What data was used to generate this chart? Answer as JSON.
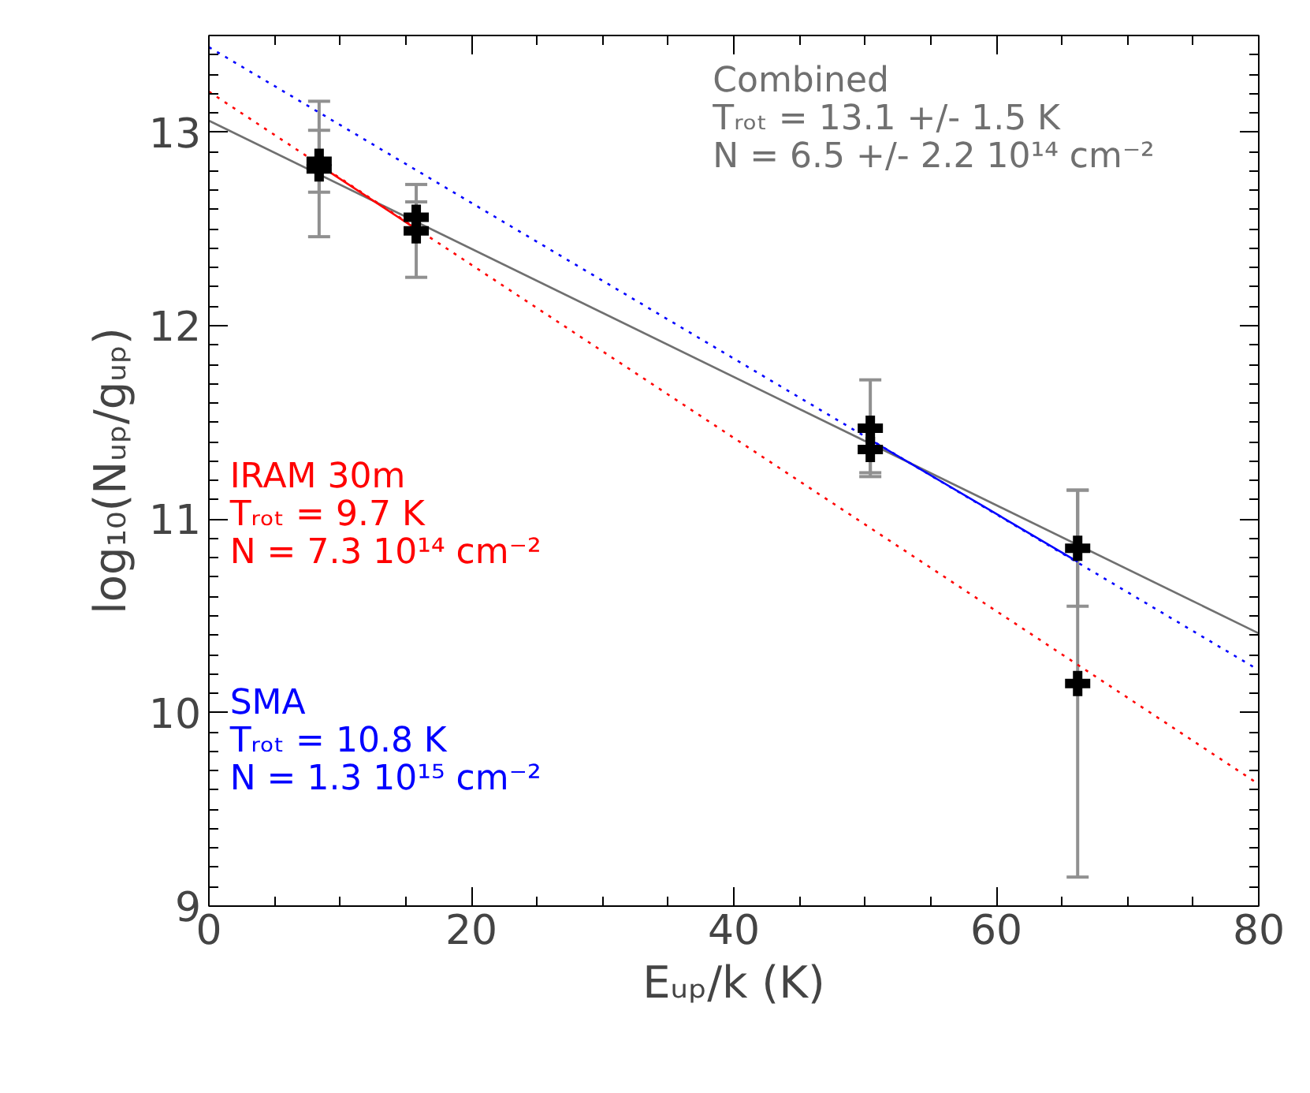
{
  "chart_data": {
    "type": "scatter",
    "xlabel": "Eᵤₚ/k (K)",
    "ylabel": "log₁₀(Nᵤₚ/gᵤₚ)",
    "xlim": [
      0,
      80
    ],
    "xticks": [
      0,
      20,
      40,
      60,
      80
    ],
    "ylim": [
      9,
      13.5
    ],
    "yticks": [
      9,
      10,
      11,
      12,
      13
    ],
    "grid": false,
    "series": [
      {
        "marker": "cross",
        "color": "#000000",
        "x": [
          8.4,
          8.4,
          15.8,
          15.8,
          50.4,
          50.4,
          66.2,
          66.2
        ],
        "values": [
          12.85,
          12.81,
          12.56,
          12.49,
          11.47,
          11.36,
          10.85,
          10.15
        ],
        "errors": [
          0.16,
          0.35,
          0.08,
          0.24,
          0.25,
          0.12,
          0.3,
          1.0
        ]
      },
      {
        "type": "line",
        "name": "Combined",
        "color": "#707070",
        "line_style": "solid",
        "x": [
          0,
          80
        ],
        "values": [
          13.06,
          10.41
        ]
      },
      {
        "type": "line",
        "name": "IRAM 30m",
        "color": "#ff0000",
        "line_style": "dotted",
        "x": [
          0,
          80
        ],
        "values": [
          13.21,
          9.63
        ]
      },
      {
        "type": "line",
        "name": "SMA",
        "color": "#0000ff",
        "line_style": "dotted",
        "x": [
          0,
          80
        ],
        "values": [
          13.44,
          10.22
        ]
      },
      {
        "type": "line",
        "color": "#ff0000",
        "line_style": "solid",
        "x": [
          8.4,
          15.8
        ],
        "values": [
          12.83,
          12.5
        ]
      },
      {
        "type": "line",
        "color": "#0000ff",
        "line_style": "solid",
        "x": [
          50.4,
          66.2
        ],
        "values": [
          11.41,
          10.78
        ]
      }
    ],
    "annotations": [
      "Tᵣₒₜ =  13.1 +/- 1.5 K",
      "N = 6.5 +/-  2.2 10¹⁴ cm⁻²",
      "Tᵣₒₜ =  9.7 K",
      "N = 7.3 10¹⁴ cm⁻²",
      "Tᵣₒₜ =  10.8 K",
      "N = 1.3 10¹⁵ cm⁻²"
    ]
  }
}
